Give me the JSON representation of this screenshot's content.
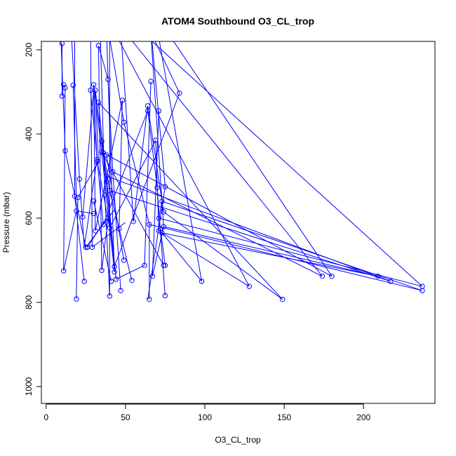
{
  "chart_data": {
    "type": "scatter",
    "title": "ATOM4 Southbound O3_CL_trop",
    "xlabel": "O3_CL_trop",
    "ylabel": "Pressure (mbar)",
    "xlim": [
      -3,
      245
    ],
    "ylim": [
      1040,
      180
    ],
    "y_reversed": true,
    "x_ticks": [
      0,
      50,
      100,
      150,
      200
    ],
    "y_ticks": [
      200,
      400,
      600,
      800,
      1000
    ],
    "grid": false,
    "series": [
      {
        "color": "#0000ff",
        "marker": "open-circle",
        "line": true,
        "points": [
          [
            9,
            140
          ],
          [
            10,
            310
          ],
          [
            11,
            283
          ],
          [
            12,
            440
          ],
          [
            11,
            725
          ],
          [
            12,
            290
          ],
          [
            10,
            185
          ],
          [
            17,
            284
          ],
          [
            16,
            170
          ],
          [
            19,
            583
          ],
          [
            18,
            548
          ],
          [
            20,
            551
          ],
          [
            21,
            507
          ],
          [
            19,
            792
          ],
          [
            18,
            160
          ],
          [
            23,
            597
          ],
          [
            25,
            669
          ],
          [
            24,
            750
          ],
          [
            26,
            669
          ],
          [
            28,
            296
          ],
          [
            29,
            669
          ],
          [
            30,
            283
          ],
          [
            30,
            559
          ],
          [
            31,
            296
          ],
          [
            30,
            589
          ],
          [
            31,
            630
          ],
          [
            32,
            461
          ],
          [
            32,
            466
          ],
          [
            33,
            325
          ],
          [
            33,
            190
          ],
          [
            34,
            150
          ],
          [
            35,
            417
          ],
          [
            35,
            443
          ],
          [
            35,
            724
          ],
          [
            36,
            615
          ],
          [
            36,
            445
          ],
          [
            37,
            545
          ],
          [
            38,
            500
          ],
          [
            38,
            513
          ],
          [
            38,
            450
          ],
          [
            39,
            600
          ],
          [
            39,
            270
          ],
          [
            40,
            534
          ],
          [
            40,
            785
          ],
          [
            40,
            623
          ],
          [
            40,
            172
          ],
          [
            41,
            750
          ],
          [
            42,
            490
          ],
          [
            43,
            715
          ],
          [
            43,
            728
          ],
          [
            44,
            745
          ],
          [
            46,
            625
          ],
          [
            47,
            772
          ],
          [
            48,
            320
          ],
          [
            49,
            700
          ],
          [
            49,
            372
          ],
          [
            54,
            748
          ],
          [
            55,
            608
          ],
          [
            62,
            712
          ],
          [
            64,
            333
          ],
          [
            64,
            345
          ],
          [
            65,
            793
          ],
          [
            65,
            615
          ],
          [
            66,
            275
          ],
          [
            66,
            162
          ],
          [
            67,
            738
          ],
          [
            69,
            415
          ],
          [
            70,
            528
          ],
          [
            71,
            345
          ],
          [
            71,
            630
          ],
          [
            71,
            600
          ],
          [
            72,
            625
          ],
          [
            73,
            635
          ],
          [
            73,
            560
          ],
          [
            74,
            620
          ],
          [
            74,
            585
          ],
          [
            74,
            712
          ],
          [
            75,
            525
          ],
          [
            75,
            712
          ],
          [
            75,
            784
          ],
          [
            84,
            303
          ],
          [
            98,
            750
          ],
          [
            128,
            762
          ],
          [
            149,
            793
          ],
          [
            174,
            738
          ],
          [
            180,
            738
          ],
          [
            209,
            738
          ],
          [
            217,
            750
          ],
          [
            237,
            762
          ],
          [
            237,
            772
          ]
        ],
        "segments": [
          [
            9,
            140,
            12,
            440
          ],
          [
            10,
            185,
            10,
            310
          ],
          [
            11,
            283,
            12,
            290
          ],
          [
            12,
            290,
            11,
            725
          ],
          [
            12,
            440,
            25,
            669
          ],
          [
            11,
            725,
            19,
            583
          ],
          [
            17,
            284,
            19,
            548
          ],
          [
            16,
            170,
            21,
            507
          ],
          [
            18,
            160,
            18,
            548
          ],
          [
            18,
            548,
            24,
            750
          ],
          [
            20,
            551,
            19,
            792
          ],
          [
            19,
            583,
            30,
            589
          ],
          [
            21,
            507,
            24,
            669
          ],
          [
            23,
            597,
            30,
            296
          ],
          [
            24,
            669,
            32,
            461
          ],
          [
            26,
            669,
            38,
            600
          ],
          [
            28,
            296,
            36,
            615
          ],
          [
            28,
            160,
            29,
            669
          ],
          [
            29,
            669,
            50,
            610
          ],
          [
            30,
            283,
            35,
            443
          ],
          [
            30,
            283,
            31,
            630
          ],
          [
            31,
            296,
            33,
            466
          ],
          [
            32,
            461,
            40,
            623
          ],
          [
            31,
            630,
            48,
            320
          ],
          [
            30,
            559,
            41,
            750
          ],
          [
            33,
            190,
            39,
            270
          ],
          [
            34,
            150,
            37,
            545
          ],
          [
            33,
            325,
            38,
            513
          ],
          [
            35,
            417,
            40,
            534
          ],
          [
            35,
            443,
            43,
            728
          ],
          [
            35,
            443,
            74,
            712
          ],
          [
            36,
            445,
            43,
            715
          ],
          [
            36,
            615,
            64,
            345
          ],
          [
            37,
            545,
            40,
            785
          ],
          [
            38,
            500,
            44,
            745
          ],
          [
            38,
            450,
            49,
            700
          ],
          [
            39,
            600,
            35,
            724
          ],
          [
            39,
            270,
            42,
            490
          ],
          [
            40,
            534,
            54,
            748
          ],
          [
            40,
            623,
            69,
            415
          ],
          [
            40,
            172,
            49,
            372
          ],
          [
            42,
            490,
            47,
            772
          ],
          [
            44,
            745,
            62,
            712
          ],
          [
            48,
            320,
            46,
            625
          ],
          [
            47,
            150,
            55,
            608
          ],
          [
            55,
            608,
            64,
            333
          ],
          [
            49,
            372,
            65,
            615
          ],
          [
            64,
            333,
            74,
            585
          ],
          [
            64,
            345,
            70,
            528
          ],
          [
            65,
            615,
            65,
            793
          ],
          [
            66,
            275,
            62,
            712
          ],
          [
            66,
            162,
            74,
            620
          ],
          [
            66,
            150,
            75,
            525
          ],
          [
            67,
            738,
            71,
            345
          ],
          [
            69,
            415,
            71,
            630
          ],
          [
            70,
            528,
            75,
            784
          ],
          [
            71,
            600,
            73,
            560
          ],
          [
            72,
            625,
            75,
            712
          ],
          [
            74,
            620,
            67,
            738
          ],
          [
            75,
            525,
            64,
            793
          ],
          [
            84,
            303,
            65,
            150
          ],
          [
            84,
            303,
            43,
            715
          ],
          [
            73,
            635,
            98,
            750
          ],
          [
            71,
            630,
            128,
            762
          ],
          [
            74,
            585,
            149,
            793
          ],
          [
            42,
            490,
            174,
            738
          ],
          [
            36,
            445,
            180,
            738
          ],
          [
            73,
            635,
            209,
            738
          ],
          [
            40,
            534,
            217,
            750
          ],
          [
            71,
            600,
            237,
            762
          ],
          [
            65,
            615,
            237,
            772
          ],
          [
            38,
            500,
            217,
            750
          ],
          [
            58,
            150,
            237,
            762
          ],
          [
            75,
            150,
            180,
            738
          ],
          [
            48,
            150,
            174,
            738
          ],
          [
            74,
            620,
            209,
            738
          ],
          [
            73,
            560,
            237,
            772
          ],
          [
            33,
            325,
            149,
            793
          ],
          [
            42,
            150,
            128,
            762
          ],
          [
            70,
            150,
            98,
            750
          ],
          [
            20,
            551,
            33,
            466
          ],
          [
            25,
            669,
            43,
            580
          ],
          [
            36,
            615,
            43,
            580
          ],
          [
            38,
            513,
            31,
            296
          ],
          [
            32,
            466,
            30,
            283
          ],
          [
            35,
            724,
            33,
            190
          ],
          [
            40,
            785,
            40,
            172
          ],
          [
            43,
            728,
            38,
            150
          ]
        ]
      }
    ]
  }
}
